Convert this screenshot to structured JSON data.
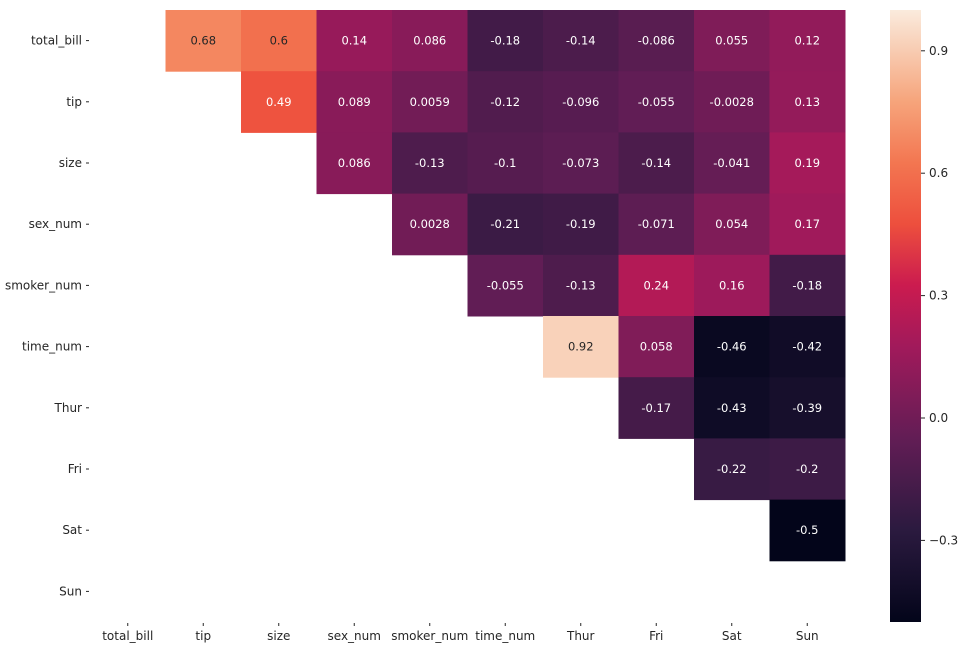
{
  "chart_data": {
    "type": "heatmap",
    "title": "",
    "xlabel": "",
    "ylabel": "",
    "rows": [
      "total_bill",
      "tip",
      "size",
      "sex_num",
      "smoker_num",
      "time_num",
      "Thur",
      "Fri",
      "Sat",
      "Sun"
    ],
    "columns": [
      "total_bill",
      "tip",
      "size",
      "sex_num",
      "smoker_num",
      "time_num",
      "Thur",
      "Fri",
      "Sat",
      "Sun"
    ],
    "mask": "lower-triangle-and-diagonal",
    "cells": [
      {
        "row": "total_bill",
        "col": "tip",
        "value": 0.68,
        "label": "0.68"
      },
      {
        "row": "total_bill",
        "col": "size",
        "value": 0.6,
        "label": "0.6"
      },
      {
        "row": "total_bill",
        "col": "sex_num",
        "value": 0.14,
        "label": "0.14"
      },
      {
        "row": "total_bill",
        "col": "smoker_num",
        "value": 0.086,
        "label": "0.086"
      },
      {
        "row": "total_bill",
        "col": "time_num",
        "value": -0.18,
        "label": "-0.18"
      },
      {
        "row": "total_bill",
        "col": "Thur",
        "value": -0.14,
        "label": "-0.14"
      },
      {
        "row": "total_bill",
        "col": "Fri",
        "value": -0.086,
        "label": "-0.086"
      },
      {
        "row": "total_bill",
        "col": "Sat",
        "value": 0.055,
        "label": "0.055"
      },
      {
        "row": "total_bill",
        "col": "Sun",
        "value": 0.12,
        "label": "0.12"
      },
      {
        "row": "tip",
        "col": "size",
        "value": 0.49,
        "label": "0.49"
      },
      {
        "row": "tip",
        "col": "sex_num",
        "value": 0.089,
        "label": "0.089"
      },
      {
        "row": "tip",
        "col": "smoker_num",
        "value": 0.0059,
        "label": "0.0059"
      },
      {
        "row": "tip",
        "col": "time_num",
        "value": -0.12,
        "label": "-0.12"
      },
      {
        "row": "tip",
        "col": "Thur",
        "value": -0.096,
        "label": "-0.096"
      },
      {
        "row": "tip",
        "col": "Fri",
        "value": -0.055,
        "label": "-0.055"
      },
      {
        "row": "tip",
        "col": "Sat",
        "value": -0.0028,
        "label": "-0.0028"
      },
      {
        "row": "tip",
        "col": "Sun",
        "value": 0.13,
        "label": "0.13"
      },
      {
        "row": "size",
        "col": "sex_num",
        "value": 0.086,
        "label": "0.086"
      },
      {
        "row": "size",
        "col": "smoker_num",
        "value": -0.13,
        "label": "-0.13"
      },
      {
        "row": "size",
        "col": "time_num",
        "value": -0.1,
        "label": "-0.1"
      },
      {
        "row": "size",
        "col": "Thur",
        "value": -0.073,
        "label": "-0.073"
      },
      {
        "row": "size",
        "col": "Fri",
        "value": -0.14,
        "label": "-0.14"
      },
      {
        "row": "size",
        "col": "Sat",
        "value": -0.041,
        "label": "-0.041"
      },
      {
        "row": "size",
        "col": "Sun",
        "value": 0.19,
        "label": "0.19"
      },
      {
        "row": "sex_num",
        "col": "smoker_num",
        "value": 0.0028,
        "label": "0.0028"
      },
      {
        "row": "sex_num",
        "col": "time_num",
        "value": -0.21,
        "label": "-0.21"
      },
      {
        "row": "sex_num",
        "col": "Thur",
        "value": -0.19,
        "label": "-0.19"
      },
      {
        "row": "sex_num",
        "col": "Fri",
        "value": -0.071,
        "label": "-0.071"
      },
      {
        "row": "sex_num",
        "col": "Sat",
        "value": 0.054,
        "label": "0.054"
      },
      {
        "row": "sex_num",
        "col": "Sun",
        "value": 0.17,
        "label": "0.17"
      },
      {
        "row": "smoker_num",
        "col": "time_num",
        "value": -0.055,
        "label": "-0.055"
      },
      {
        "row": "smoker_num",
        "col": "Thur",
        "value": -0.13,
        "label": "-0.13"
      },
      {
        "row": "smoker_num",
        "col": "Fri",
        "value": 0.24,
        "label": "0.24"
      },
      {
        "row": "smoker_num",
        "col": "Sat",
        "value": 0.16,
        "label": "0.16"
      },
      {
        "row": "smoker_num",
        "col": "Sun",
        "value": -0.18,
        "label": "-0.18"
      },
      {
        "row": "time_num",
        "col": "Thur",
        "value": 0.92,
        "label": "0.92"
      },
      {
        "row": "time_num",
        "col": "Fri",
        "value": 0.058,
        "label": "0.058"
      },
      {
        "row": "time_num",
        "col": "Sat",
        "value": -0.46,
        "label": "-0.46"
      },
      {
        "row": "time_num",
        "col": "Sun",
        "value": -0.42,
        "label": "-0.42"
      },
      {
        "row": "Thur",
        "col": "Fri",
        "value": -0.17,
        "label": "-0.17"
      },
      {
        "row": "Thur",
        "col": "Sat",
        "value": -0.43,
        "label": "-0.43"
      },
      {
        "row": "Thur",
        "col": "Sun",
        "value": -0.39,
        "label": "-0.39"
      },
      {
        "row": "Fri",
        "col": "Sat",
        "value": -0.22,
        "label": "-0.22"
      },
      {
        "row": "Fri",
        "col": "Sun",
        "value": -0.2,
        "label": "-0.2"
      },
      {
        "row": "Sat",
        "col": "Sun",
        "value": -0.5,
        "label": "-0.5"
      }
    ],
    "colorbar": {
      "colormap": "rocket",
      "vmin": -0.5,
      "vmax": 1.0,
      "ticks": [
        -0.3,
        0.0,
        0.3,
        0.6,
        0.9
      ],
      "tick_labels": [
        "−0.3",
        "0.0",
        "0.3",
        "0.6",
        "0.9"
      ]
    },
    "colormap_stops": [
      {
        "t": 0.0,
        "color": "#03051a"
      },
      {
        "t": 0.15,
        "color": "#2b1a3f"
      },
      {
        "t": 0.3,
        "color": "#621d55"
      },
      {
        "t": 0.45,
        "color": "#a11a5b"
      },
      {
        "t": 0.55,
        "color": "#cb1b4f"
      },
      {
        "t": 0.65,
        "color": "#ed4f3d"
      },
      {
        "t": 0.75,
        "color": "#f37651"
      },
      {
        "t": 0.85,
        "color": "#f6a47b"
      },
      {
        "t": 1.0,
        "color": "#faebdd"
      }
    ],
    "grid": false,
    "legend": "colorbar-right"
  }
}
